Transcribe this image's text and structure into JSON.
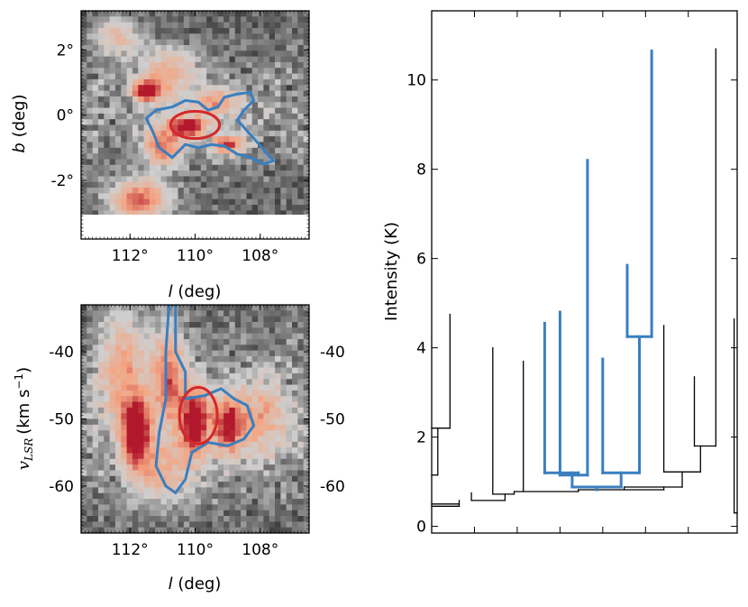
{
  "chart_data": [
    {
      "type": "heatmap",
      "name": "sky-map",
      "title": "",
      "xlabel_var": "l",
      "xlabel_unit": "(deg)",
      "ylabel_var": "b",
      "ylabel_unit": "(deg)",
      "xlim": [
        113.5,
        106.5
      ],
      "ylim": [
        -3.8,
        3.2
      ],
      "x_ticks": [
        112,
        110,
        108
      ],
      "x_tick_labels": [
        "112°",
        "110°",
        "108°"
      ],
      "y_ticks": [
        2,
        0,
        -2
      ],
      "y_tick_labels": [
        "2°",
        "0°",
        "-2°"
      ],
      "colormap": [
        "#1a1a1a",
        "#cfcfcf",
        "#f4a582",
        "#b2182b"
      ],
      "contour_color": "#3a7fbf",
      "ellipse_color": "#d62728",
      "blobs": [
        {
          "l": 111.5,
          "b": 0.75,
          "sl": 0.3,
          "sb": 0.22,
          "amp": 1.0
        },
        {
          "l": 110.2,
          "b": -0.35,
          "sl": 0.35,
          "sb": 0.2,
          "amp": 1.0
        },
        {
          "l": 109.0,
          "b": -0.9,
          "sl": 0.35,
          "sb": 0.2,
          "amp": 0.7
        },
        {
          "l": 111.0,
          "b": -0.9,
          "sl": 0.4,
          "sb": 0.45,
          "amp": 0.6
        },
        {
          "l": 111.7,
          "b": -2.6,
          "sl": 0.6,
          "sb": 0.4,
          "amp": 0.7
        },
        {
          "l": 109.3,
          "b": 0.4,
          "sl": 0.5,
          "sb": 0.3,
          "amp": 0.45
        },
        {
          "l": 110.8,
          "b": 1.3,
          "sl": 0.6,
          "sb": 0.5,
          "amp": 0.4
        },
        {
          "l": 112.4,
          "b": 2.4,
          "sl": 0.5,
          "sb": 0.4,
          "amp": 0.35
        }
      ],
      "contour": [
        [
          111.5,
          -0.1
        ],
        [
          111.2,
          0.15
        ],
        [
          110.7,
          0.25
        ],
        [
          110.3,
          0.45
        ],
        [
          109.9,
          0.4
        ],
        [
          109.6,
          0.15
        ],
        [
          109.3,
          0.25
        ],
        [
          109.1,
          0.55
        ],
        [
          108.7,
          0.65
        ],
        [
          108.3,
          0.7
        ],
        [
          108.2,
          0.45
        ],
        [
          108.5,
          0.15
        ],
        [
          108.7,
          -0.15
        ],
        [
          108.3,
          -0.6
        ],
        [
          107.9,
          -1.05
        ],
        [
          107.6,
          -1.4
        ],
        [
          107.9,
          -1.5
        ],
        [
          108.3,
          -1.3
        ],
        [
          108.7,
          -1.2
        ],
        [
          109.1,
          -0.95
        ],
        [
          109.5,
          -0.9
        ],
        [
          109.9,
          -1.0
        ],
        [
          110.3,
          -0.9
        ],
        [
          110.7,
          -1.3
        ],
        [
          111.1,
          -1.0
        ],
        [
          111.3,
          -0.5
        ]
      ],
      "ellipse": {
        "l": 110.0,
        "b": -0.3,
        "rl": 0.75,
        "rb": 0.42
      }
    },
    {
      "type": "heatmap",
      "name": "position-velocity",
      "title": "",
      "xlabel_var": "l",
      "xlabel_unit": "(deg)",
      "ylabel_var": "v",
      "ylabel_sub": "LSR",
      "ylabel_unit_pre": "(km s",
      "ylabel_unit_sup": "−1",
      "ylabel_unit_post": ")",
      "xlim": [
        113.5,
        106.5
      ],
      "ylim": [
        -67,
        -33
      ],
      "x_ticks": [
        112,
        110,
        108
      ],
      "x_tick_labels": [
        "112°",
        "110°",
        "108°"
      ],
      "y_ticks": [
        -40,
        -50,
        -60
      ],
      "y_tick_labels": [
        "-40",
        "-50",
        "-60"
      ],
      "colormap": [
        "#1a1a1a",
        "#cfcfcf",
        "#f4a582",
        "#b2182b"
      ],
      "contour_color": "#3a7fbf",
      "ellipse_color": "#d62728",
      "blobs": [
        {
          "l": 111.8,
          "v": -52,
          "sl": 0.3,
          "sv": 3.5,
          "amp": 1.0
        },
        {
          "l": 110.0,
          "v": -50.5,
          "sl": 0.3,
          "sv": 3.5,
          "amp": 1.0
        },
        {
          "l": 109.0,
          "v": -51,
          "sl": 0.3,
          "sv": 3.0,
          "amp": 0.75
        },
        {
          "l": 110.8,
          "v": -44,
          "sl": 0.35,
          "sv": 5.0,
          "amp": 0.6
        },
        {
          "l": 112.2,
          "v": -43,
          "sl": 0.5,
          "sv": 6.0,
          "amp": 0.45
        },
        {
          "l": 108.0,
          "v": -50,
          "sl": 0.6,
          "sv": 4.0,
          "amp": 0.4
        },
        {
          "l": 111.0,
          "v": -58,
          "sl": 0.6,
          "sv": 3.0,
          "amp": 0.4
        }
      ],
      "contour": [
        [
          110.8,
          -33
        ],
        [
          110.6,
          -33
        ],
        [
          110.6,
          -40
        ],
        [
          110.3,
          -43
        ],
        [
          110.3,
          -47
        ],
        [
          109.7,
          -46.5
        ],
        [
          109.2,
          -45.5
        ],
        [
          108.8,
          -47
        ],
        [
          108.4,
          -48
        ],
        [
          108.2,
          -51
        ],
        [
          108.5,
          -53
        ],
        [
          109.0,
          -54
        ],
        [
          109.6,
          -53.5
        ],
        [
          110.1,
          -55
        ],
        [
          110.3,
          -59
        ],
        [
          110.6,
          -61
        ],
        [
          110.9,
          -60
        ],
        [
          111.2,
          -57
        ],
        [
          111.1,
          -52
        ],
        [
          110.9,
          -47
        ],
        [
          110.9,
          -40
        ]
      ],
      "ellipse": {
        "l": 109.9,
        "v": -49.5,
        "rl": 0.58,
        "rv": 4.2
      }
    },
    {
      "type": "dendrogram",
      "name": "dendrogram",
      "title": "",
      "xlabel": "",
      "ylabel": "Intensity (K)",
      "xlim": [
        0,
        100
      ],
      "ylim": [
        -0.15,
        11.55
      ],
      "y_ticks": [
        0,
        2,
        4,
        6,
        8,
        10
      ],
      "x_ticks": [
        14,
        28,
        42,
        56,
        70,
        84
      ],
      "branch_color": "#000000",
      "highlight_color": "#3a7fbf",
      "segments": [
        {
          "x1": 2,
          "y1": 1.15,
          "x2": 2,
          "y2": 2.2,
          "hl": false
        },
        {
          "x1": 0,
          "y1": 1.15,
          "x2": 2,
          "y2": 1.15,
          "hl": false
        },
        {
          "x1": 0,
          "y1": 2.2,
          "x2": 6,
          "y2": 2.2,
          "hl": false
        },
        {
          "x1": 6,
          "y1": 2.2,
          "x2": 6,
          "y2": 4.75,
          "hl": false
        },
        {
          "x1": 0,
          "y1": 0.5,
          "x2": 9,
          "y2": 0.5,
          "hl": false
        },
        {
          "x1": 0,
          "y1": 0.45,
          "x2": 9,
          "y2": 0.45,
          "hl": false
        },
        {
          "x1": 9,
          "y1": 0.45,
          "x2": 9,
          "y2": 0.58,
          "hl": false
        },
        {
          "x1": 13,
          "y1": 0.58,
          "x2": 13,
          "y2": 0.75,
          "hl": false
        },
        {
          "x1": 13,
          "y1": 0.58,
          "x2": 24,
          "y2": 0.58,
          "hl": false
        },
        {
          "x1": 24,
          "y1": 0.58,
          "x2": 24,
          "y2": 0.72,
          "hl": false
        },
        {
          "x1": 20,
          "y1": 0.72,
          "x2": 20,
          "y2": 4.0,
          "hl": false
        },
        {
          "x1": 20,
          "y1": 0.72,
          "x2": 27,
          "y2": 0.72,
          "hl": false
        },
        {
          "x1": 27,
          "y1": 0.72,
          "x2": 27,
          "y2": 0.78,
          "hl": false
        },
        {
          "x1": 30,
          "y1": 0.78,
          "x2": 30,
          "y2": 3.7,
          "hl": false
        },
        {
          "x1": 27,
          "y1": 0.78,
          "x2": 48,
          "y2": 0.78,
          "hl": false
        },
        {
          "x1": 48,
          "y1": 0.78,
          "x2": 48,
          "y2": 0.82,
          "hl": false
        },
        {
          "x1": 48,
          "y1": 0.82,
          "x2": 76,
          "y2": 0.82,
          "hl": false
        },
        {
          "x1": 76,
          "y1": 0.82,
          "x2": 76,
          "y2": 0.88,
          "hl": false
        },
        {
          "x1": 63,
          "y1": 0.88,
          "x2": 63,
          "y2": 0.82,
          "hl": false
        },
        {
          "x1": 63,
          "y1": 0.88,
          "x2": 82,
          "y2": 0.88,
          "hl": false
        },
        {
          "x1": 82,
          "y1": 0.88,
          "x2": 82,
          "y2": 1.22,
          "hl": false
        },
        {
          "x1": 76,
          "y1": 1.22,
          "x2": 88,
          "y2": 1.22,
          "hl": false
        },
        {
          "x1": 76,
          "y1": 1.22,
          "x2": 76,
          "y2": 4.5,
          "hl": false
        },
        {
          "x1": 88,
          "y1": 1.22,
          "x2": 88,
          "y2": 1.8,
          "hl": false
        },
        {
          "x1": 86,
          "y1": 1.8,
          "x2": 93,
          "y2": 1.8,
          "hl": false
        },
        {
          "x1": 86,
          "y1": 1.8,
          "x2": 86,
          "y2": 3.35,
          "hl": false
        },
        {
          "x1": 93,
          "y1": 1.8,
          "x2": 93,
          "y2": 10.7,
          "hl": false
        },
        {
          "x1": 99,
          "y1": 0.3,
          "x2": 99,
          "y2": 4.65,
          "hl": false
        },
        {
          "x1": 99,
          "y1": 0.3,
          "x2": 100,
          "y2": 0.3,
          "hl": false
        },
        {
          "x1": 54,
          "y1": 0.82,
          "x2": 54,
          "y2": 0.88,
          "hl": true
        },
        {
          "x1": 46,
          "y1": 0.88,
          "x2": 62,
          "y2": 0.88,
          "hl": true
        },
        {
          "x1": 46,
          "y1": 0.88,
          "x2": 46,
          "y2": 1.2,
          "hl": true
        },
        {
          "x1": 62,
          "y1": 0.88,
          "x2": 62,
          "y2": 1.2,
          "hl": true
        },
        {
          "x1": 37,
          "y1": 1.2,
          "x2": 48,
          "y2": 1.2,
          "hl": true
        },
        {
          "x1": 37,
          "y1": 1.2,
          "x2": 37,
          "y2": 4.55,
          "hl": true
        },
        {
          "x1": 48,
          "y1": 1.2,
          "x2": 48,
          "y2": 1.15,
          "hl": true
        },
        {
          "x1": 42,
          "y1": 1.15,
          "x2": 51,
          "y2": 1.15,
          "hl": true
        },
        {
          "x1": 42,
          "y1": 1.15,
          "x2": 42,
          "y2": 4.8,
          "hl": true
        },
        {
          "x1": 51,
          "y1": 1.15,
          "x2": 51,
          "y2": 8.2,
          "hl": true
        },
        {
          "x1": 56,
          "y1": 1.2,
          "x2": 68,
          "y2": 1.2,
          "hl": true
        },
        {
          "x1": 56,
          "y1": 1.2,
          "x2": 56,
          "y2": 3.75,
          "hl": true
        },
        {
          "x1": 68,
          "y1": 1.2,
          "x2": 68,
          "y2": 4.25,
          "hl": true
        },
        {
          "x1": 64,
          "y1": 4.25,
          "x2": 72,
          "y2": 4.25,
          "hl": true
        },
        {
          "x1": 64,
          "y1": 4.25,
          "x2": 64,
          "y2": 5.85,
          "hl": true
        },
        {
          "x1": 72,
          "y1": 4.25,
          "x2": 72,
          "y2": 10.65,
          "hl": true
        }
      ]
    }
  ]
}
